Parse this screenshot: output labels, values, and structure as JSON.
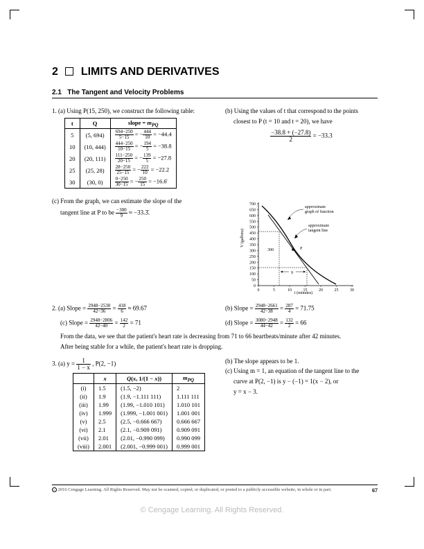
{
  "chapter": {
    "num": "2",
    "title": "LIMITS AND DERIVATIVES"
  },
  "section": {
    "num": "2.1",
    "title": "The Tangent and Velocity Problems"
  },
  "q1": {
    "a_intro": "1. (a) Using P(15, 250), we construct the following table:",
    "table": {
      "headers": [
        "t",
        "Q",
        "slope = m_PQ"
      ],
      "rows": [
        {
          "t": "5",
          "Q": "(5, 694)",
          "fn": "694−250",
          "fd": "5−15",
          "gn": "444",
          "gd": "10",
          "val": "−44.4"
        },
        {
          "t": "10",
          "Q": "(10, 444)",
          "fn": "444−250",
          "fd": "10−15",
          "gn": "194",
          "gd": "5",
          "val": "−38.8"
        },
        {
          "t": "20",
          "Q": "(20, 111)",
          "fn": "111−250",
          "fd": "20−15",
          "gn": "139",
          "gd": "5",
          "val": "−27.8"
        },
        {
          "t": "25",
          "Q": "(25, 28)",
          "fn": "28−250",
          "fd": "25−15",
          "gn": "222",
          "gd": "10",
          "val": "−22.2"
        },
        {
          "t": "30",
          "Q": "(30, 0)",
          "fn": "0−250",
          "fd": "30−15",
          "gn": "250",
          "gd": "15",
          "val": "−16.6̄"
        }
      ]
    },
    "b_text1": "(b) Using the values of t that correspond to the points",
    "b_text2": "closest to P (t = 10 and t = 20), we have",
    "b_frac_n": "−38.8 + (−27.8)",
    "b_frac_d": "2",
    "b_result": " = −33.3",
    "c_text_a": "(c) From the graph, we can estimate the slope of the",
    "c_text_b": "tangent line at P to be ",
    "c_frac_n": "−300",
    "c_frac_d": "9",
    "c_text_c": " ≈ −33.3̄.",
    "graph": {
      "yticks": [
        "700",
        "650",
        "600",
        "550",
        "500",
        "450",
        "400",
        "350",
        "300",
        "250",
        "200",
        "150",
        "100",
        "50",
        "0"
      ],
      "xticks": [
        "0",
        "5",
        "10",
        "15",
        "20",
        "25",
        "30"
      ],
      "lbl_func": "approximate\ngraph of function",
      "lbl_tan": "approximate\ntangent line",
      "lbl_P": "P",
      "lbl_300": "300",
      "lbl_9": "9",
      "ylabel": "V (gallons)",
      "xlabel": "t (minutes)",
      "curve_color": "#000",
      "bg": "#fff"
    }
  },
  "q2": {
    "a": "2. (a) Slope = ",
    "a_n": "2948−2530",
    "a_d": "42−36",
    "a_m": " = ",
    "a_n2": "418",
    "a_d2": "6",
    "a_r": " ≈ 69.67",
    "b": "(b) Slope = ",
    "b_n": "2948−2661",
    "b_d": "42−38",
    "b_m": " = ",
    "b_n2": "287",
    "b_d2": "4",
    "b_r": " = 71.75",
    "c": "(c) Slope = ",
    "c_n": "2948−2806",
    "c_d": "42−40",
    "c_m": " = ",
    "c_n2": "142",
    "c_d2": "2",
    "c_r": " = 71",
    "d": "(d) Slope = ",
    "d_n": "3080−2948",
    "d_d": "44−42",
    "d_m": " = ",
    "d_n2": "132",
    "d_d2": "2",
    "d_r": " = 66",
    "conclusion1": "From the data, we see that the patient's heart rate is decreasing from 71 to 66 heartbeats/minute after 42 minutes.",
    "conclusion2": "After being stable for a while, the patient's heart rate is dropping."
  },
  "q3": {
    "a_pre": "3. (a) y = ",
    "a_n": "1",
    "a_d": "1 − x",
    "a_post": ", P(2, −1)",
    "table": {
      "headers": [
        "",
        "x",
        "Q(x, 1/(1 − x))",
        "m_PQ"
      ],
      "rows": [
        [
          "(i)",
          "1.5",
          "(1.5, −2)",
          "2"
        ],
        [
          "(ii)",
          "1.9",
          "(1.9, −1.111 111)",
          "1.111 111"
        ],
        [
          "(iii)",
          "1.99",
          "(1.99, −1.010 101)",
          "1.010 101"
        ],
        [
          "(iv)",
          "1.999",
          "(1.999, −1.001 001)",
          "1.001 001"
        ],
        [
          "(v)",
          "2.5",
          "(2.5, −0.666 667)",
          "0.666 667"
        ],
        [
          "(vi)",
          "2.1",
          "(2.1, −0.909 091)",
          "0.909 091"
        ],
        [
          "(vii)",
          "2.01",
          "(2.01, −0.990 099)",
          "0.990 099"
        ],
        [
          "(viii)",
          "2.001",
          "(2.001, −0.999 001)",
          "0.999 001"
        ]
      ]
    },
    "b": "(b) The slope appears to be 1.",
    "c1": "(c) Using m = 1, an equation of the tangent line to the",
    "c2": "curve at P(2, −1) is y − (−1) = 1(x − 2), or",
    "c3": "y = x − 3."
  },
  "footer": {
    "copyright": "2016 Cengage Learning. All Rights Reserved. May not be scanned, copied, or duplicated, or posted to a publicly accessible website, in whole or in part.",
    "page": "67"
  },
  "watermark": "© Cengage Learning. All Rights Reserved."
}
